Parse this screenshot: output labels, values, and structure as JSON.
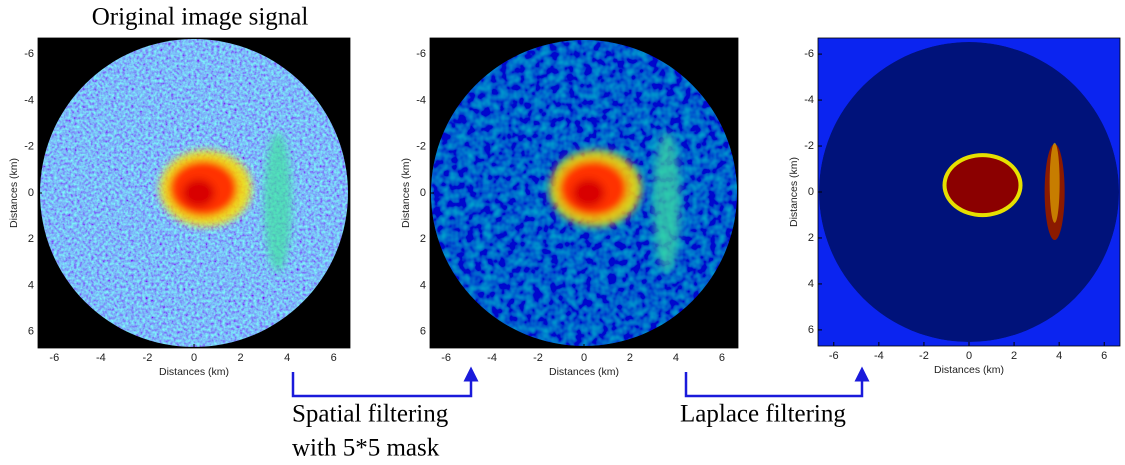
{
  "title": "Original image signal",
  "panels": [
    {
      "xlabel": "Distances (km)",
      "ylabel": "Distances (km)",
      "xticks": [
        -6,
        -4,
        -2,
        0,
        2,
        4,
        6
      ],
      "yticks": [
        -6,
        -4,
        -2,
        0,
        2,
        4,
        6
      ]
    },
    {
      "xlabel": "Distances (km)",
      "ylabel": "Distances (km)",
      "xticks": [
        -6,
        -4,
        -2,
        0,
        2,
        4,
        6
      ],
      "yticks": [
        -6,
        -4,
        -2,
        0,
        2,
        4,
        6
      ]
    },
    {
      "xlabel": "Distances (km)",
      "ylabel": "Distances (km)",
      "xticks": [
        -6,
        -4,
        -2,
        0,
        2,
        4,
        6
      ],
      "yticks": [
        -6,
        -4,
        -2,
        0,
        2,
        4,
        6
      ]
    }
  ],
  "steps": [
    {
      "lines": [
        "Spatial filtering",
        "with 5*5 mask"
      ]
    },
    {
      "lines": [
        "Laplace filtering"
      ]
    }
  ]
}
